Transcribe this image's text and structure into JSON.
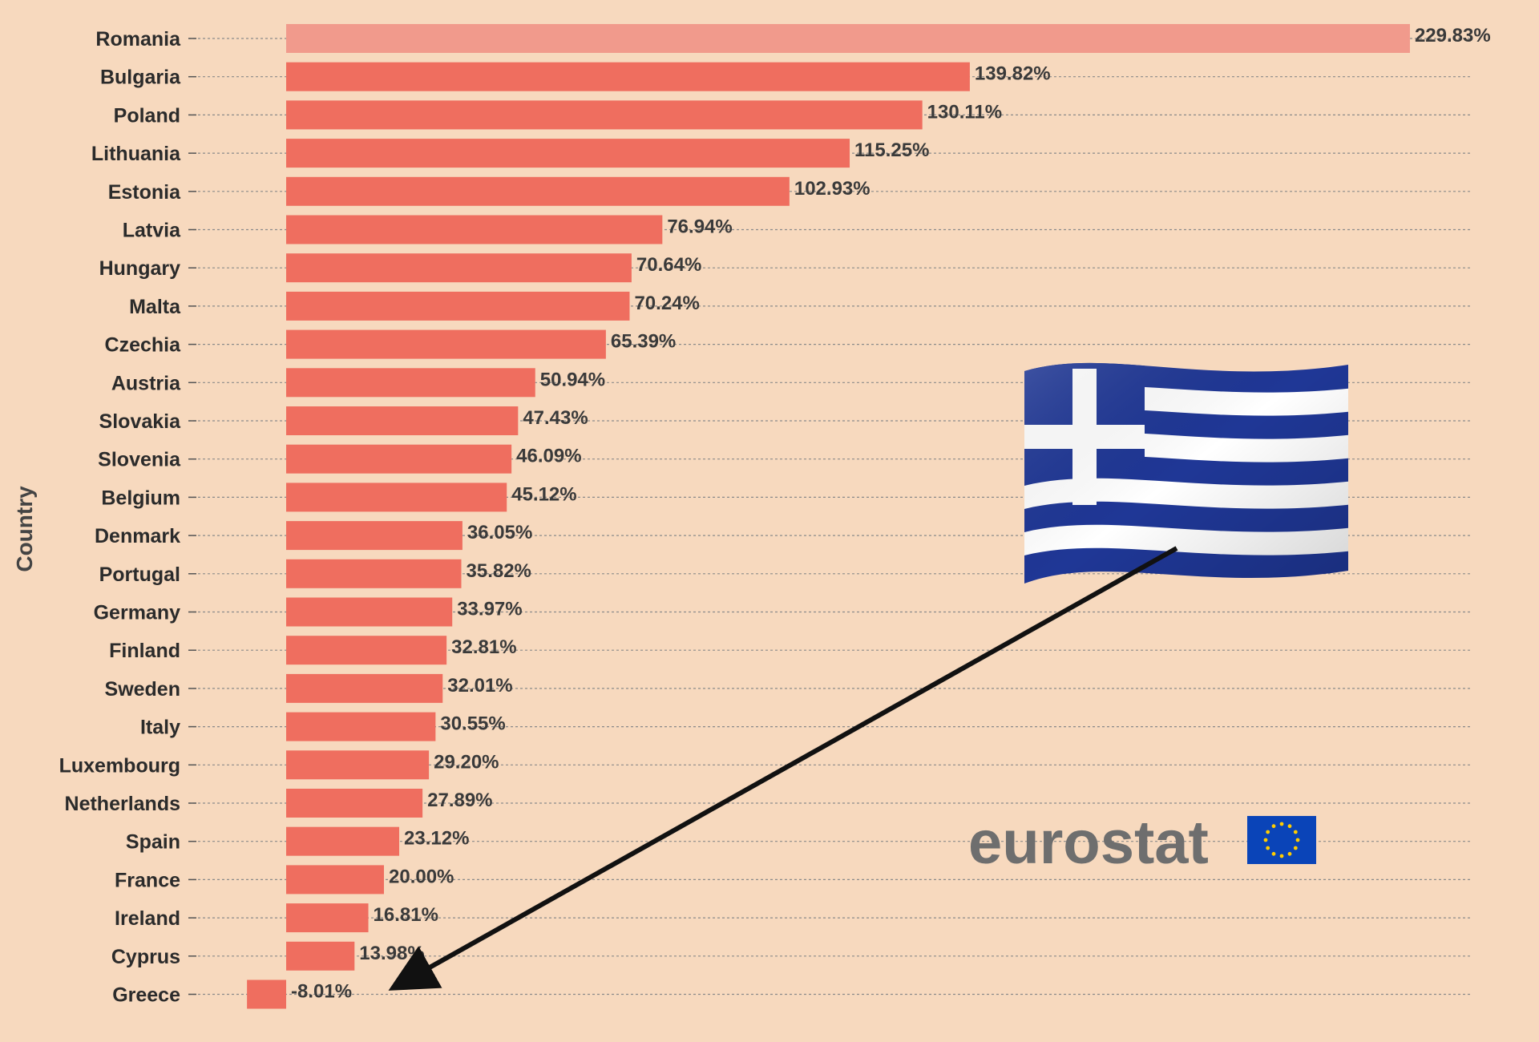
{
  "chart_data": {
    "type": "bar",
    "orientation": "horizontal",
    "ylabel": "Country",
    "categories": [
      "Romania",
      "Bulgaria",
      "Poland",
      "Lithuania",
      "Estonia",
      "Latvia",
      "Hungary",
      "Malta",
      "Czechia",
      "Austria",
      "Slovakia",
      "Slovenia",
      "Belgium",
      "Denmark",
      "Portugal",
      "Germany",
      "Finland",
      "Sweden",
      "Italy",
      "Luxembourg",
      "Netherlands",
      "Spain",
      "France",
      "Ireland",
      "Cyprus",
      "Greece"
    ],
    "values": [
      229.83,
      139.82,
      130.11,
      115.25,
      102.93,
      76.94,
      70.64,
      70.24,
      65.39,
      50.94,
      47.43,
      46.09,
      45.12,
      36.05,
      35.82,
      33.97,
      32.81,
      32.01,
      30.55,
      29.2,
      27.89,
      23.12,
      20.0,
      16.81,
      13.98,
      -8.01
    ],
    "value_labels": [
      "229.83%",
      "139.82%",
      "130.11%",
      "115.25%",
      "102.93%",
      "76.94%",
      "70.64%",
      "70.24%",
      "65.39%",
      "50.94%",
      "47.43%",
      "46.09%",
      "45.12%",
      "36.05%",
      "35.82%",
      "33.97%",
      "32.81%",
      "32.01%",
      "30.55%",
      "29.20%",
      "27.89%",
      "23.12%",
      "20.00%",
      "16.81%",
      "13.98%",
      "-8.01%"
    ],
    "xlim": [
      -10,
      240
    ],
    "grid": true,
    "highlight_category": "Greece"
  },
  "annotations": {
    "flag_icon": "greece-flag-icon",
    "arrow_target": "Greece"
  },
  "branding": {
    "text": "eurostat",
    "logo_icon": "eu-flag-icon"
  },
  "colors": {
    "background": "#f7d9be",
    "bar": "#ef6e5f",
    "bar_top": "#f19a8c",
    "grid": "#8a8a8a",
    "flag_blue": "#1f3796",
    "flag_white": "#ffffff",
    "eu_blue": "#0a44b8",
    "eu_star": "#ffcc00",
    "arrow": "#111111"
  }
}
